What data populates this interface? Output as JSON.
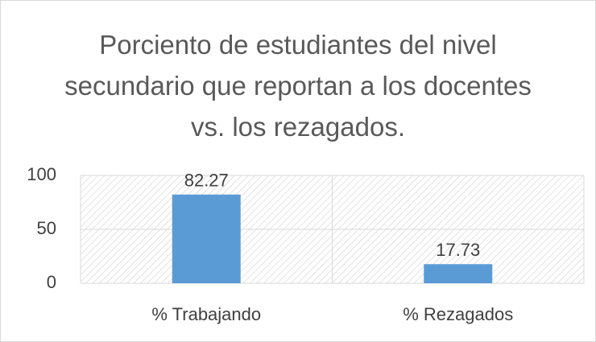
{
  "chart_data": {
    "type": "bar",
    "title": "Porciento de estudiantes del nivel secundario que reportan a los docentes vs. los rezagados.",
    "categories": [
      "% Trabajando",
      "% Rezagados"
    ],
    "values": [
      82.27,
      17.73
    ],
    "color": "#5b9bd5",
    "ylim": [
      0,
      100
    ],
    "yticks": [
      0,
      50,
      100
    ],
    "grid": true
  }
}
